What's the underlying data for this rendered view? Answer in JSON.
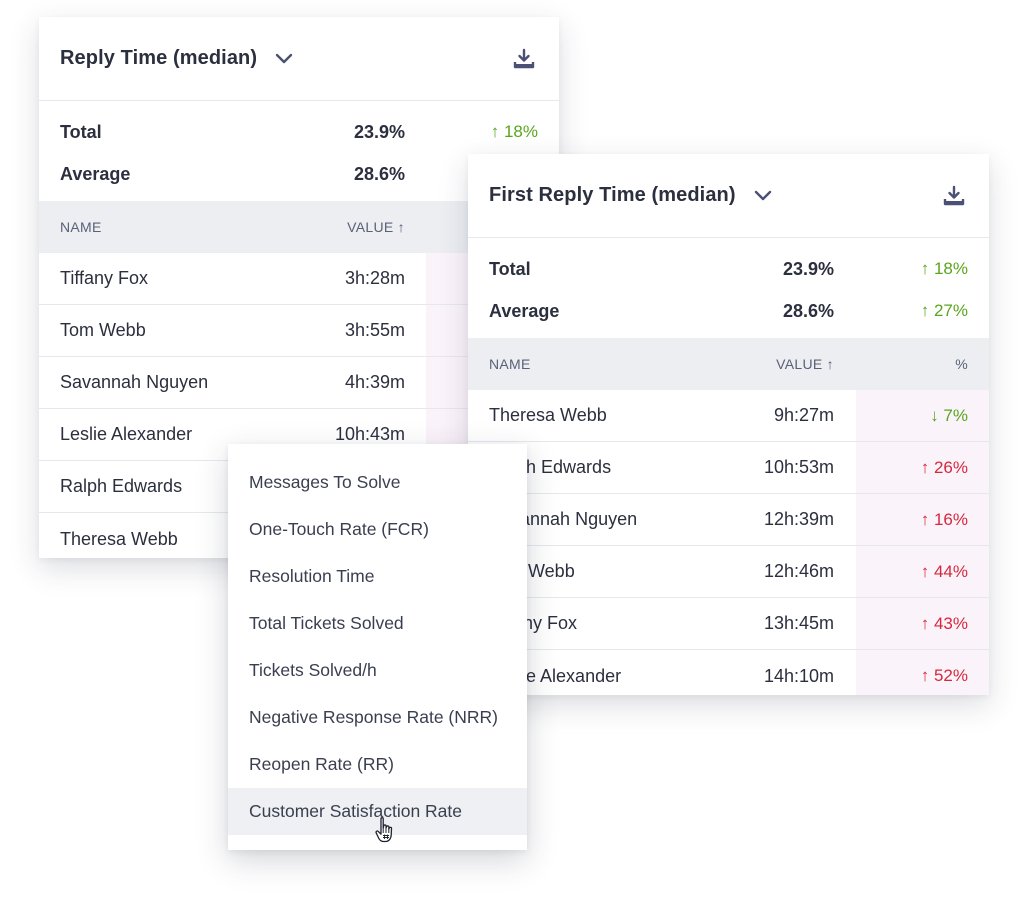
{
  "card1": {
    "title": "Reply Time (median)",
    "summary": [
      {
        "label": "Total",
        "value": "23.9%",
        "change": "↑ 18%"
      },
      {
        "label": "Average",
        "value": "28.6%"
      }
    ],
    "columns": {
      "name": "NAME",
      "value": "VALUE ↑"
    },
    "rows": [
      {
        "name": "Tiffany Fox",
        "value": "3h:28m"
      },
      {
        "name": "Tom Webb",
        "value": "3h:55m"
      },
      {
        "name": "Savannah Nguyen",
        "value": "4h:39m"
      },
      {
        "name": "Leslie Alexander",
        "value": "10h:43m"
      },
      {
        "name": "Ralph Edwards",
        "value": ""
      },
      {
        "name": "Theresa Webb",
        "value": ""
      }
    ]
  },
  "card2": {
    "title": "First Reply Time (median)",
    "summary": [
      {
        "label": "Total",
        "value": "23.9%",
        "change": "↑ 18%"
      },
      {
        "label": "Average",
        "value": "28.6%",
        "change": "↑ 27%"
      }
    ],
    "columns": {
      "name": "NAME",
      "value": "VALUE ↑",
      "pct": "%"
    },
    "rows": [
      {
        "name": "Theresa Webb",
        "value": "9h:27m",
        "pct": "↓ 7%",
        "trend": "good"
      },
      {
        "name": "Ralph Edwards",
        "value": "10h:53m",
        "pct": "↑ 26%",
        "trend": "bad"
      },
      {
        "name": "Savannah Nguyen",
        "value": "12h:39m",
        "pct": "↑ 16%",
        "trend": "bad"
      },
      {
        "name": "Tom Webb",
        "value": "12h:46m",
        "pct": "↑ 44%",
        "trend": "bad"
      },
      {
        "name": "Tiffany Fox",
        "value": "13h:45m",
        "pct": "↑ 43%",
        "trend": "bad"
      },
      {
        "name": "Leslie Alexander",
        "value": "14h:10m",
        "pct": "↑ 52%",
        "trend": "bad"
      }
    ]
  },
  "dropdown": {
    "items": [
      "Messages To Solve",
      "One-Touch Rate (FCR)",
      "Resolution Time",
      "Total Tickets Solved",
      "Tickets Solved/h",
      "Negative Response Rate (NRR)",
      "Reopen Rate (RR)",
      "Customer Satisfaction Rate"
    ],
    "hovered_index": 7
  },
  "icons": {
    "chevron": "chevron-down-icon",
    "download": "download-icon",
    "cursor": "hand-pointer-icon"
  },
  "colors": {
    "positive": "#5aa51d",
    "negative": "#d6283d",
    "header_bg": "#eceef2",
    "pct_bg": "#fbf3fa",
    "accent": "#4a5173"
  }
}
